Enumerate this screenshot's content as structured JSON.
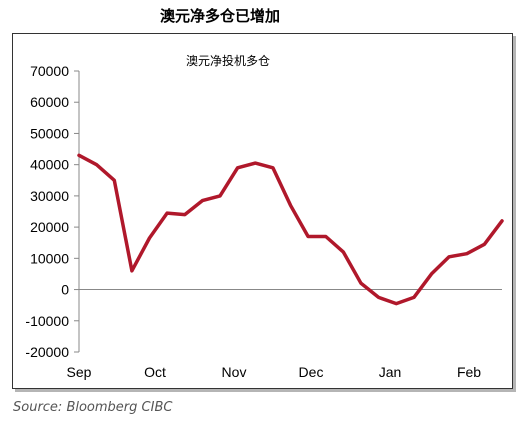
{
  "figure": {
    "title": "澳元净多仓已增加",
    "source": "Source:  Bloomberg CIBC"
  },
  "chart_data": {
    "type": "line",
    "title": "澳元净投机多仓",
    "xlabel": "",
    "ylabel": "",
    "ylim": [
      -20000,
      70000
    ],
    "yticks": [
      70000,
      60000,
      50000,
      40000,
      30000,
      20000,
      10000,
      0,
      -10000,
      -20000
    ],
    "ytick_labels": [
      "70000",
      "60000",
      "50000",
      "40000",
      "30000",
      "20000",
      "10000",
      "0",
      "-10000",
      "-20000"
    ],
    "xtick_labels": [
      "Sep",
      "Oct",
      "Nov",
      "Dec",
      "Jan",
      "Feb"
    ],
    "grid": false,
    "line_color": "#b0182b",
    "series": [
      {
        "name": "",
        "values": [
          43000,
          40000,
          35000,
          6000,
          16500,
          24500,
          24000,
          28500,
          30000,
          39000,
          40500,
          39000,
          27000,
          17000,
          17000,
          12000,
          2000,
          -2500,
          -4500,
          -2500,
          5000,
          10500,
          11500,
          14500,
          22000
        ]
      }
    ]
  }
}
